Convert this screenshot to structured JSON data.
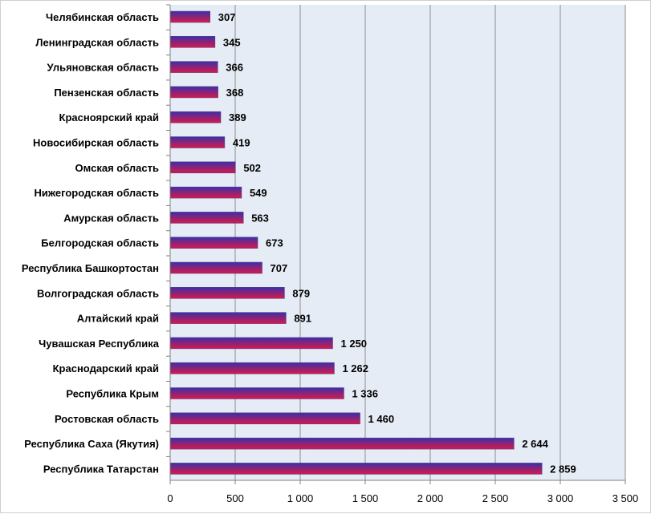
{
  "chart_data": {
    "type": "bar",
    "orientation": "horizontal",
    "categories": [
      "Челябинская область",
      "Ленинградская область",
      "Ульяновская область",
      "Пензенская область",
      "Красноярский край",
      "Новосибирская область",
      "Омская область",
      "Нижегородская область",
      "Амурская область",
      "Белгородская область",
      "Республика Башкортостан",
      "Волгоградская область",
      "Алтайский край",
      "Чувашская Республика",
      "Краснодарский край",
      "Республика Крым",
      "Ростовская область",
      "Республика Саха (Якутия)",
      "Республика Татарстан"
    ],
    "values": [
      307,
      345,
      366,
      368,
      389,
      419,
      502,
      549,
      563,
      673,
      707,
      879,
      891,
      1250,
      1262,
      1336,
      1460,
      2644,
      2859
    ],
    "value_labels": [
      "307",
      "345",
      "366",
      "368",
      "389",
      "419",
      "502",
      "549",
      "563",
      "673",
      "707",
      "879",
      "891",
      "1 250",
      "1 262",
      "1 336",
      "1 460",
      "2 644",
      "2 859"
    ],
    "xlim": [
      0,
      3500
    ],
    "x_ticks": [
      0,
      500,
      1000,
      1500,
      2000,
      2500,
      3000,
      3500
    ],
    "x_tick_labels": [
      "0",
      "500",
      "1 000",
      "1 500",
      "2 000",
      "2 500",
      "3 000",
      "3 500"
    ],
    "title": "",
    "xlabel": "",
    "ylabel": "",
    "grid": "vertical",
    "legend": "none",
    "colors": {
      "bar_top": "#3b2fa8",
      "bar_bottom": "#d8194a",
      "plot_background": "#e6ecf5",
      "gridline": "#8c8c8c",
      "axis": "#808080"
    }
  }
}
